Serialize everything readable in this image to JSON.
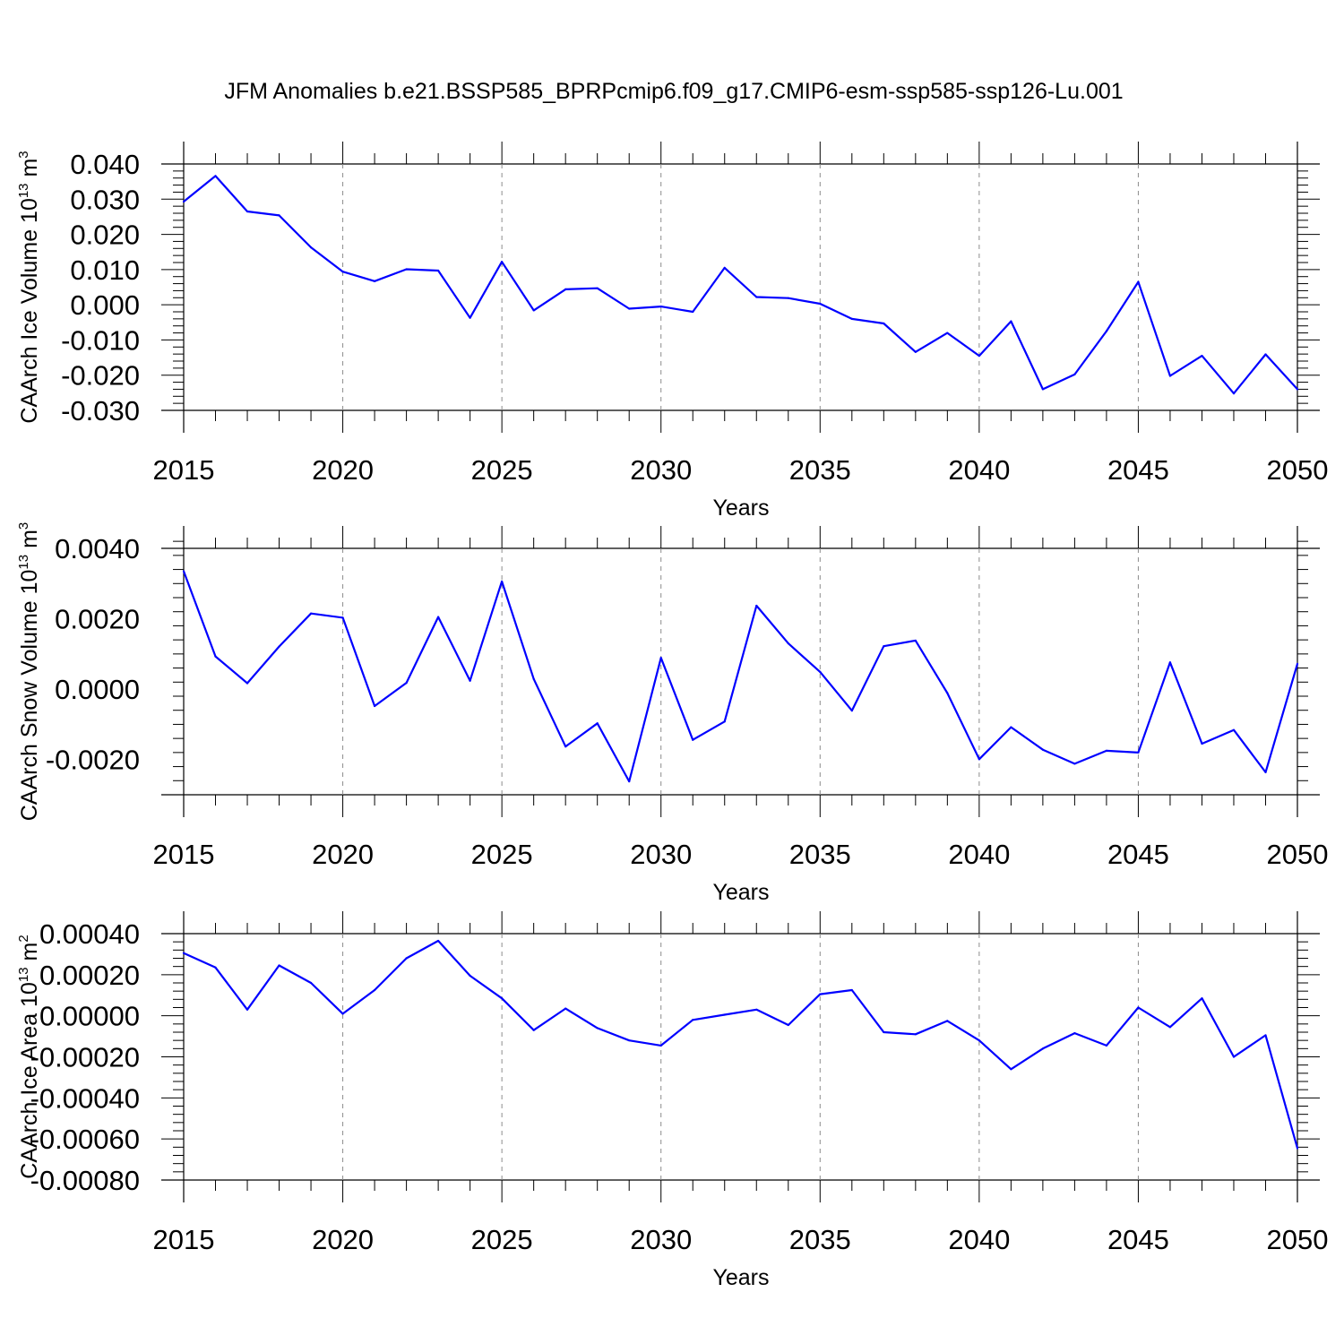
{
  "title": "JFM Anomalies b.e21.BSSP585_BPRPcmip6.f09_g17.CMIP6-esm-ssp585-ssp126-Lu.001",
  "colors": {
    "line": "#0000ff",
    "axis": "#000000",
    "grid": "#8c8c8c"
  },
  "chart_data": [
    {
      "type": "line",
      "xlabel": "Years",
      "ylabel_main": "CAArch Ice Volume 10",
      "ylabel_exp": "13",
      "ylabel_unit": " m",
      "ylabel_unit_exp": "3",
      "xlim": [
        2015,
        2050
      ],
      "ylim": [
        -0.03,
        0.04
      ],
      "x_ticks": [
        "2015",
        "2020",
        "2025",
        "2030",
        "2035",
        "2040",
        "2045",
        "2050"
      ],
      "y_ticks": [
        {
          "value": 0.04,
          "label": "0.040"
        },
        {
          "value": 0.03,
          "label": "0.030"
        },
        {
          "value": 0.02,
          "label": "0.020"
        },
        {
          "value": 0.01,
          "label": "0.010"
        },
        {
          "value": 0.0,
          "label": "0.000"
        },
        {
          "value": -0.01,
          "label": "-0.010"
        },
        {
          "value": -0.02,
          "label": "-0.020"
        },
        {
          "value": -0.03,
          "label": "-0.030"
        }
      ],
      "grid": "vertical dashed at major x ticks",
      "x": [
        2015,
        2016,
        2017,
        2018,
        2019,
        2020,
        2021,
        2022,
        2023,
        2024,
        2025,
        2026,
        2027,
        2028,
        2029,
        2030,
        2031,
        2032,
        2033,
        2034,
        2035,
        2036,
        2037,
        2038,
        2039,
        2040,
        2041,
        2042,
        2043,
        2044,
        2045,
        2046,
        2047,
        2048,
        2049,
        2050
      ],
      "y": [
        0.0293,
        0.0366,
        0.0265,
        0.0254,
        0.0163,
        0.0094,
        0.0067,
        0.0101,
        0.0097,
        -0.0037,
        0.0122,
        -0.0016,
        0.0044,
        0.0047,
        -0.0011,
        -0.0005,
        -0.002,
        0.0105,
        0.0022,
        0.0019,
        0.0003,
        -0.004,
        -0.0053,
        -0.0134,
        -0.008,
        -0.0145,
        -0.0047,
        -0.024,
        -0.0198,
        -0.0075,
        0.0065,
        -0.0202,
        -0.0145,
        -0.0252,
        -0.0141,
        -0.024
      ]
    },
    {
      "type": "line",
      "xlabel": "Years",
      "ylabel_main": "CAArch Snow Volume 10",
      "ylabel_exp": "13",
      "ylabel_unit": " m",
      "ylabel_unit_exp": "3",
      "xlim": [
        2015,
        2050
      ],
      "ylim": [
        -0.003,
        0.004
      ],
      "x_ticks": [
        "2015",
        "2020",
        "2025",
        "2030",
        "2035",
        "2040",
        "2045",
        "2050"
      ],
      "y_ticks": [
        {
          "value": 0.004,
          "label": "0.0040"
        },
        {
          "value": 0.002,
          "label": "0.0020"
        },
        {
          "value": 0.0,
          "label": "0.0000"
        },
        {
          "value": -0.002,
          "label": "-0.0020"
        }
      ],
      "grid": "vertical dashed at major x ticks",
      "x": [
        2015,
        2016,
        2017,
        2018,
        2019,
        2020,
        2021,
        2022,
        2023,
        2024,
        2025,
        2026,
        2027,
        2028,
        2029,
        2030,
        2031,
        2032,
        2033,
        2034,
        2035,
        2036,
        2037,
        2038,
        2039,
        2040,
        2041,
        2042,
        2043,
        2044,
        2045,
        2046,
        2047,
        2048,
        2049,
        2050
      ],
      "y": [
        0.00335,
        0.00093,
        0.00017,
        0.00121,
        0.00215,
        0.00203,
        -0.00048,
        0.00018,
        0.00205,
        0.00024,
        0.00306,
        0.00029,
        -0.00163,
        -0.00097,
        -0.00262,
        0.00089,
        -0.00144,
        -0.00092,
        0.00237,
        0.0013,
        0.00049,
        -0.00061,
        0.00122,
        0.00138,
        -0.00011,
        -0.00199,
        -0.00108,
        -0.00172,
        -0.00212,
        -0.00175,
        -0.0018,
        0.00076,
        -0.00155,
        -0.00116,
        -0.00236,
        0.00072
      ]
    },
    {
      "type": "line",
      "xlabel": "Years",
      "ylabel_main": "CAArch Ice Area 10",
      "ylabel_exp": "13",
      "ylabel_unit": " m",
      "ylabel_unit_exp": "2",
      "xlim": [
        2015,
        2050
      ],
      "ylim": [
        -0.0008,
        0.0004
      ],
      "x_ticks": [
        "2015",
        "2020",
        "2025",
        "2030",
        "2035",
        "2040",
        "2045",
        "2050"
      ],
      "y_ticks": [
        {
          "value": 0.0004,
          "label": "0.00040"
        },
        {
          "value": 0.0002,
          "label": "0.00020"
        },
        {
          "value": 0.0,
          "label": "0.00000"
        },
        {
          "value": -0.0002,
          "label": "-0.00020"
        },
        {
          "value": -0.0004,
          "label": "-0.00040"
        },
        {
          "value": -0.0006,
          "label": "-0.00060"
        },
        {
          "value": -0.0008,
          "label": "-0.00080"
        }
      ],
      "grid": "vertical dashed at major x ticks",
      "x": [
        2015,
        2016,
        2017,
        2018,
        2019,
        2020,
        2021,
        2022,
        2023,
        2024,
        2025,
        2026,
        2027,
        2028,
        2029,
        2030,
        2031,
        2032,
        2033,
        2034,
        2035,
        2036,
        2037,
        2038,
        2039,
        2040,
        2041,
        2042,
        2043,
        2044,
        2045,
        2046,
        2047,
        2048,
        2049,
        2050
      ],
      "y": [
        0.000305,
        0.000235,
        3e-05,
        0.000245,
        0.00016,
        1e-05,
        0.000125,
        0.00028,
        0.000365,
        0.000195,
        8.5e-05,
        -7e-05,
        3.5e-05,
        -6e-05,
        -0.00012,
        -0.000145,
        -2e-05,
        5e-06,
        3e-05,
        -4.5e-05,
        0.000105,
        0.000125,
        -8e-05,
        -9e-05,
        -2.5e-05,
        -0.00012,
        -0.00026,
        -0.00016,
        -8.5e-05,
        -0.000145,
        4e-05,
        -5.5e-05,
        8.5e-05,
        -0.0002,
        -9.5e-05,
        -0.000645
      ]
    }
  ]
}
